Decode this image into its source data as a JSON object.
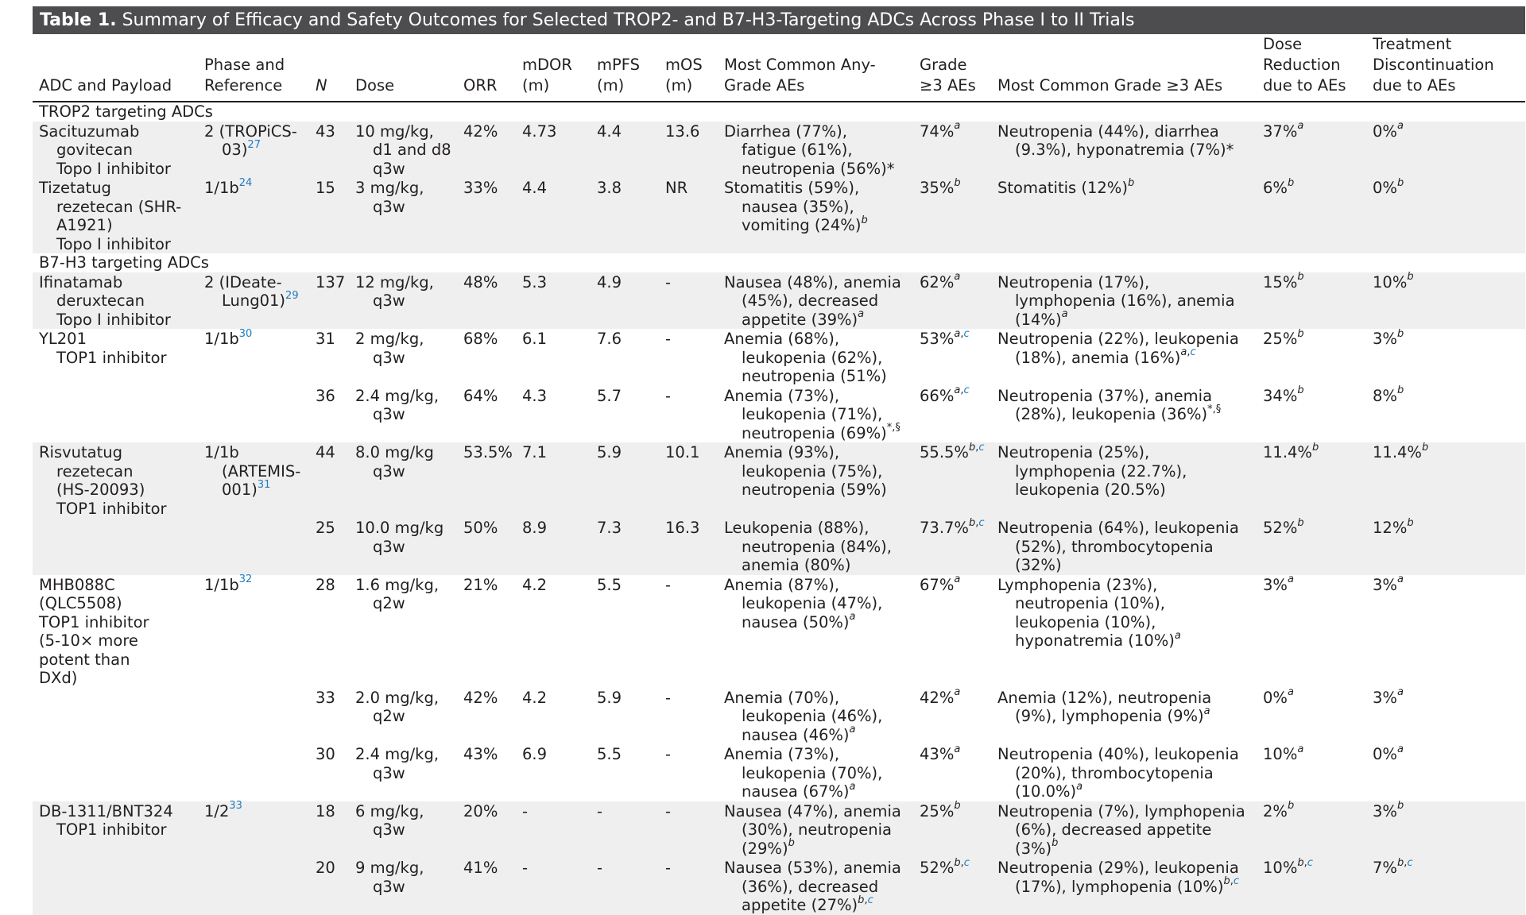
{
  "title": {
    "label": "Table 1.",
    "text": "Summary of Efficacy and Safety Outcomes for Selected TROP2- and B7-H3-Targeting ADCs Across Phase I to II Trials"
  },
  "headers": {
    "adc": "ADC and Payload",
    "phase": "Phase and Reference",
    "n": "N",
    "dose": "Dose",
    "orr": "ORR",
    "mdor": "mDOR (m)",
    "mpfs": "mPFS (m)",
    "mos": "mOS (m)",
    "ae_any": "Most Common Any-Grade AEs",
    "grade3": "Grade ≥3 AEs",
    "ae_g3": "Most Common Grade ≥3 AEs",
    "dose_red": "Dose Reduction due to AEs",
    "discont": "Treatment Discontinuation due to AEs"
  },
  "sections": {
    "trop2": "TROP2 targeting ADCs",
    "b7h3": "B7-H3 targeting ADCs"
  },
  "rows": {
    "sg": {
      "adc1": "Sacituzumab",
      "adc2": "govitecan",
      "adc3": "Topo I inhibitor",
      "phase1": "2 (TROPiCS-",
      "phase2": "03)",
      "ref": "27",
      "n": "43",
      "dose1": "10 mg/kg,",
      "dose2": "d1 and d8",
      "dose3": "q3w",
      "orr": "42%",
      "mdor": "4.73",
      "mpfs": "4.4",
      "mos": "13.6",
      "ae1": "Diarrhea (77%),",
      "ae2": "fatigue (61%),",
      "ae3": "neutropenia (56%)*",
      "g3": "74%",
      "g3sup": "a",
      "aeg1": "Neutropenia (44%), diarrhea",
      "aeg2": "(9.3%), hyponatremia (7%)*",
      "red": "37%",
      "redsup": "a",
      "disc": "0%",
      "discsup": "a"
    },
    "tr": {
      "adc1": "Tizetatug",
      "adc2": "rezetecan (SHR-",
      "adc3": "A1921)",
      "adc4": "Topo I inhibitor",
      "phase1": "1/1b",
      "ref": "24",
      "n": "15",
      "dose1": "3 mg/kg,",
      "dose2": "q3w",
      "orr": "33%",
      "mdor": "4.4",
      "mpfs": "3.8",
      "mos": "NR",
      "ae1": "Stomatitis (59%),",
      "ae2": "nausea (35%),",
      "ae3": "vomiting (24%)",
      "aesup": "b",
      "g3": "35%",
      "g3sup": "b",
      "aeg1": "Stomatitis (12%)",
      "aegsup": "b",
      "red": "6%",
      "redsup": "b",
      "disc": "0%",
      "discsup": "b"
    },
    "idxd": {
      "adc1": "Ifinatamab",
      "adc2": "deruxtecan",
      "adc3": "Topo I inhibitor",
      "phase1": "2 (IDeate-",
      "phase2": "Lung01)",
      "ref": "29",
      "n": "137",
      "dose1": "12 mg/kg,",
      "dose2": "q3w",
      "orr": "48%",
      "mdor": "5.3",
      "mpfs": "4.9",
      "mos": "-",
      "ae1": "Nausea (48%), anemia",
      "ae2": "(45%), decreased",
      "ae3": "appetite (39%)",
      "aesup": "a",
      "g3": "62%",
      "g3sup": "a",
      "aeg1": "Neutropenia (17%),",
      "aeg2": "lymphopenia (16%), anemia",
      "aeg3": "(14%)",
      "aegsup": "a",
      "red": "15%",
      "redsup": "b",
      "disc": "10%",
      "discsup": "b"
    },
    "yl1": {
      "adc1": "YL201",
      "adc2": "TOP1 inhibitor",
      "phase1": "1/1b",
      "ref": "30",
      "n": "31",
      "dose1": "2 mg/kg,",
      "dose2": "q3w",
      "orr": "68%",
      "mdor": "6.1",
      "mpfs": "7.6",
      "mos": "-",
      "ae1": "Anemia (68%),",
      "ae2": "leukopenia (62%),",
      "ae3": "neutropenia (51%)",
      "g3": "53%",
      "g3supa": "a",
      "g3supc": "c",
      "aeg1": "Neutropenia (22%), leukopenia",
      "aeg2": "(18%), anemia (16%)",
      "aegsupa": "a",
      "aegsupc": "c",
      "red": "25%",
      "redsup": "b",
      "disc": "3%",
      "discsup": "b"
    },
    "yl2": {
      "n": "36",
      "dose1": "2.4 mg/kg,",
      "dose2": "q3w",
      "orr": "64%",
      "mdor": "4.3",
      "mpfs": "5.7",
      "mos": "-",
      "ae1": "Anemia (73%),",
      "ae2": "leukopenia (71%),",
      "ae3": "neutropenia (69%)",
      "aesup": "*,§",
      "g3": "66%",
      "g3supa": "a",
      "g3supc": "c",
      "aeg1": "Neutropenia (37%), anemia",
      "aeg2": "(28%), leukopenia (36%)",
      "aegsup": "*,§",
      "red": "34%",
      "redsup": "b",
      "disc": "8%",
      "discsup": "b"
    },
    "rr1": {
      "adc1": "Risvutatug",
      "adc2": "rezetecan",
      "adc3": "(HS-20093)",
      "adc4": "TOP1 inhibitor",
      "phase1": "1/1b",
      "phase2": "(ARTEMIS-",
      "phase3": "001)",
      "ref": "31",
      "n": "44",
      "dose1": "8.0 mg/kg",
      "dose2": "q3w",
      "orr": "53.5%",
      "mdor": "7.1",
      "mpfs": "5.9",
      "mos": "10.1",
      "ae1": "Anemia (93%),",
      "ae2": "leukopenia (75%),",
      "ae3": "neutropenia (59%)",
      "g3": "55.5%",
      "g3supb": "b",
      "g3supc": "c",
      "aeg1": "Neutropenia (25%),",
      "aeg2": "lymphopenia (22.7%),",
      "aeg3": "leukopenia (20.5%)",
      "red": "11.4%",
      "redsup": "b",
      "disc": "11.4%",
      "discsup": "b"
    },
    "rr2": {
      "n": "25",
      "dose1": "10.0 mg/kg",
      "dose2": "q3w",
      "orr": "50%",
      "mdor": "8.9",
      "mpfs": "7.3",
      "mos": "16.3",
      "ae1": "Leukopenia (88%),",
      "ae2": "neutropenia (84%),",
      "ae3": "anemia (80%)",
      "g3": "73.7%",
      "g3supb": "b",
      "g3supc": "c",
      "aeg1": "Neutropenia (64%), leukopenia",
      "aeg2": "(52%), thrombocytopenia",
      "aeg3": "(32%)",
      "red": "52%",
      "redsup": "b",
      "disc": "12%",
      "discsup": "b"
    },
    "mhb1": {
      "adc1": "MHB088C",
      "adc2": "(QLC5508)",
      "adc3": "TOP1 inhibitor",
      "adc4": "(5-10× more",
      "adc5": "potent than",
      "adc6": "DXd)",
      "phase1": "1/1b",
      "ref": "32",
      "n": "28",
      "dose1": "1.6 mg/kg,",
      "dose2": "q2w",
      "orr": "21%",
      "mdor": "4.2",
      "mpfs": "5.5",
      "mos": "-",
      "ae1": "Anemia (87%),",
      "ae2": "leukopenia (47%),",
      "ae3": "nausea (50%)",
      "aesup": "a",
      "g3": "67%",
      "g3sup": "a",
      "aeg1": "Lymphopenia (23%),",
      "aeg2": "neutropenia (10%),",
      "aeg3": "leukopenia (10%),",
      "aeg4": "hyponatremia (10%)",
      "aegsup": "a",
      "red": "3%",
      "redsup": "a",
      "disc": "3%",
      "discsup": "a"
    },
    "mhb2": {
      "n": "33",
      "dose1": "2.0 mg/kg,",
      "dose2": "q2w",
      "orr": "42%",
      "mdor": "4.2",
      "mpfs": "5.9",
      "mos": "-",
      "ae1": "Anemia (70%),",
      "ae2": "leukopenia (46%),",
      "ae3": "nausea (46%)",
      "aesup": "a",
      "g3": "42%",
      "g3sup": "a",
      "aeg1": "Anemia (12%), neutropenia",
      "aeg2": "(9%), lymphopenia (9%)",
      "aegsup": "a",
      "red": "0%",
      "redsup": "a",
      "disc": "3%",
      "discsup": "a"
    },
    "mhb3": {
      "n": "30",
      "dose1": "2.4 mg/kg,",
      "dose2": "q3w",
      "orr": "43%",
      "mdor": "6.9",
      "mpfs": "5.5",
      "mos": "-",
      "ae1": "Anemia (73%),",
      "ae2": "leukopenia (70%),",
      "ae3": "nausea (67%)",
      "aesup": "a",
      "g3": "43%",
      "g3sup": "a",
      "aeg1": "Neutropenia (40%), leukopenia",
      "aeg2": "(20%), thrombocytopenia",
      "aeg3": "(10.0%)",
      "aegsup": "a",
      "red": "10%",
      "redsup": "a",
      "disc": "0%",
      "discsup": "a"
    },
    "db1": {
      "adc1": "DB-1311/BNT324",
      "adc2": "TOP1 inhibitor",
      "phase1": "1/2",
      "ref": "33",
      "n": "18",
      "dose1": "6 mg/kg,",
      "dose2": "q3w",
      "orr": "20%",
      "mdor": "-",
      "mpfs": "-",
      "mos": "-",
      "ae1": "Nausea (47%), anemia",
      "ae2": "(30%), neutropenia",
      "ae3": "(29%)",
      "aesup": "b",
      "g3": "25%",
      "g3sup": "b",
      "aeg1": "Neutropenia (7%), lymphopenia",
      "aeg2": "(6%), decreased appetite",
      "aeg3": "(3%)",
      "aegsup": "b",
      "red": "2%",
      "redsup": "b",
      "disc": "3%",
      "discsup": "b"
    },
    "db2": {
      "n": "20",
      "dose1": "9 mg/kg,",
      "dose2": "q3w",
      "orr": "41%",
      "mdor": "-",
      "mpfs": "-",
      "mos": "-",
      "ae1": "Nausea (53%), anemia",
      "ae2": "(36%), decreased",
      "ae3": "appetite (27%)",
      "aesupb": "b",
      "aesupc": "c",
      "g3": "52%",
      "g3supb": "b",
      "g3supc": "c",
      "aeg1": "Neutropenia (29%), leukopenia",
      "aeg2": "(17%), lymphopenia (10%)",
      "aegsupb": "b",
      "aegsupc": "c",
      "red": "10%",
      "redsupb": "b",
      "redsupc": "c",
      "disc": "7%",
      "discsupb": "b",
      "discsupc": "c"
    }
  }
}
